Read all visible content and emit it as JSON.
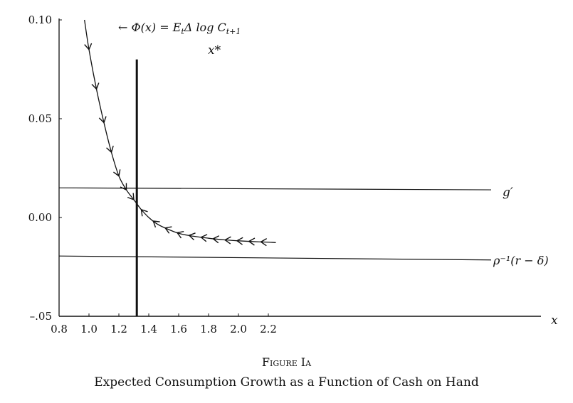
{
  "chart_data": {
    "type": "line",
    "title": "",
    "xlabel": "x",
    "ylabel": "",
    "xlim": [
      0.8,
      2.4
    ],
    "ylim": [
      -0.05,
      0.1
    ],
    "x_ticks": [
      0.8,
      1.0,
      1.2,
      1.4,
      1.6,
      1.8,
      2.0,
      2.2
    ],
    "x_tick_labels": [
      "0.8",
      "1.0",
      "1.2",
      "1.4",
      "1.6",
      "1.8",
      "2.0",
      "2.2"
    ],
    "y_ticks": [
      -0.05,
      0.0,
      0.05,
      0.1
    ],
    "y_tick_labels": [
      "–.05",
      "0.00",
      "0.05",
      "0.10"
    ],
    "grid": false,
    "series": [
      {
        "name": "Φ(x) = E_t Δ log C_{t+1}",
        "x": [
          0.97,
          1.0,
          1.05,
          1.1,
          1.15,
          1.2,
          1.25,
          1.3,
          1.32,
          1.35,
          1.4,
          1.45,
          1.5,
          1.6,
          1.7,
          1.8,
          1.9,
          2.0,
          2.1,
          2.2,
          2.25
        ],
        "y": [
          0.1,
          0.085,
          0.065,
          0.048,
          0.033,
          0.021,
          0.014,
          0.009,
          0.007,
          0.004,
          0.0,
          -0.003,
          -0.005,
          -0.008,
          -0.0095,
          -0.0105,
          -0.0113,
          -0.0118,
          -0.0122,
          -0.0125,
          -0.0127
        ],
        "arrows_x": [
          1.0,
          1.05,
          1.1,
          1.15,
          1.2,
          1.25,
          1.3,
          1.35,
          1.43,
          1.51,
          1.59,
          1.67,
          1.75,
          1.83,
          1.91,
          1.99,
          2.07,
          2.15
        ]
      }
    ],
    "hlines": [
      {
        "label": "g′",
        "y": 0.015,
        "y_end": 0.014
      },
      {
        "label": "ρ⁻¹(r − δ)",
        "y": -0.0195,
        "y_end": -0.0215
      }
    ],
    "vlines": [
      {
        "label": "x*",
        "x": 1.32,
        "y_top": 0.08
      }
    ]
  },
  "labels": {
    "curve_label": "← Φ(x) = E",
    "curve_label_sub_t": "t",
    "curve_label_mid": "Δ log C",
    "curve_label_sub_t1": "t+1",
    "g_prime_label": "g′",
    "rho_label": "ρ⁻¹(r − δ)",
    "x_star_label": "x*",
    "x_axis_label": "x"
  },
  "caption": {
    "figure_label": "Figure Ia",
    "title": "Expected Consumption Growth as a Function of Cash on Hand"
  }
}
